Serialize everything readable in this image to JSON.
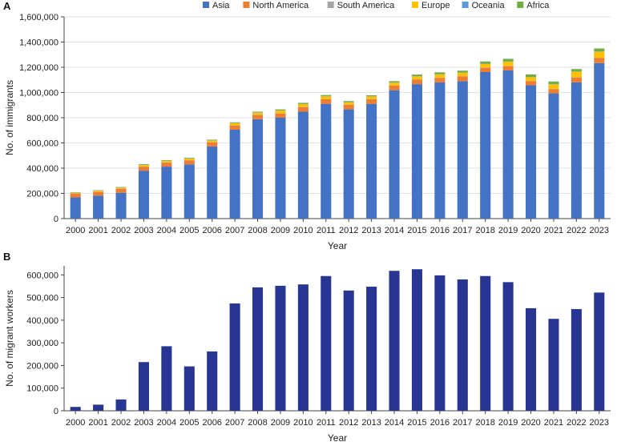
{
  "chart_data": [
    {
      "panel": "A",
      "type": "bar",
      "stacked": true,
      "xlabel": "Year",
      "ylabel": "No. of immigrants",
      "ylim": [
        0,
        1600000
      ],
      "yticks": [
        0,
        200000,
        400000,
        600000,
        800000,
        1000000,
        1200000,
        1400000,
        1600000
      ],
      "ytick_labels": [
        "0",
        "200,000",
        "400,000",
        "600,000",
        "800,000",
        "1,000,000",
        "1,200,000",
        "1,400,000",
        "1,600,000"
      ],
      "grid": "horizontal",
      "legend_position": "top",
      "categories": [
        "2000",
        "2001",
        "2002",
        "2003",
        "2004",
        "2005",
        "2006",
        "2007",
        "2008",
        "2009",
        "2010",
        "2011",
        "2012",
        "2013",
        "2014",
        "2015",
        "2016",
        "2017",
        "2018",
        "2019",
        "2020",
        "2021",
        "2022",
        "2023"
      ],
      "series": [
        {
          "name": "Asia",
          "color": "#4472c4",
          "values": [
            168000,
            182000,
            205000,
            380000,
            412000,
            430000,
            572000,
            705000,
            788000,
            800000,
            848000,
            910000,
            866000,
            910000,
            1018000,
            1066000,
            1080000,
            1090000,
            1162000,
            1175000,
            1057000,
            993000,
            1080000,
            1233000
          ]
        },
        {
          "name": "North America",
          "color": "#ed7d31",
          "values": [
            30000,
            30000,
            30000,
            32000,
            32000,
            32000,
            32000,
            34000,
            34000,
            34000,
            36000,
            36000,
            36000,
            36000,
            36000,
            36000,
            36000,
            37000,
            34000,
            34000,
            34000,
            34000,
            40000,
            40000
          ]
        },
        {
          "name": "South America",
          "color": "#a5a5a5",
          "values": [
            2000,
            2000,
            2000,
            2000,
            2000,
            2000,
            2000,
            2000,
            2000,
            2000,
            2000,
            2000,
            2000,
            2000,
            2000,
            2000,
            2000,
            2000,
            2000,
            2000,
            2000,
            2000,
            2000,
            2000
          ]
        },
        {
          "name": "Europe",
          "color": "#ffc000",
          "values": [
            6000,
            8000,
            8000,
            12000,
            12000,
            12000,
            14000,
            16000,
            16000,
            20000,
            22000,
            22000,
            18000,
            20000,
            22000,
            24000,
            26000,
            28000,
            28000,
            34000,
            28000,
            36000,
            42000,
            48000
          ]
        },
        {
          "name": "Oceania",
          "color": "#5b9bd5",
          "values": [
            2000,
            2000,
            2000,
            2000,
            2000,
            2000,
            2000,
            2000,
            2000,
            2000,
            2000,
            2000,
            2000,
            2000,
            2000,
            2000,
            2000,
            2000,
            2000,
            2000,
            2000,
            2000,
            2000,
            2000
          ]
        },
        {
          "name": "Africa",
          "color": "#70ad47",
          "values": [
            2000,
            2000,
            3000,
            4000,
            4000,
            4000,
            4000,
            5000,
            6000,
            8000,
            8000,
            8000,
            8000,
            8000,
            10000,
            12000,
            14000,
            14000,
            18000,
            20000,
            20000,
            20000,
            20000,
            24000
          ]
        }
      ]
    },
    {
      "panel": "B",
      "type": "bar",
      "xlabel": "Year",
      "ylabel": "No. of migrant workers",
      "ylim": [
        0,
        640000
      ],
      "yticks": [
        0,
        100000,
        200000,
        300000,
        400000,
        500000,
        600000
      ],
      "ytick_labels": [
        "0",
        "100,000",
        "200,000",
        "300,000",
        "400,000",
        "500,000",
        "600,000"
      ],
      "grid": "none",
      "color": "#283593",
      "categories": [
        "2000",
        "2001",
        "2002",
        "2003",
        "2004",
        "2005",
        "2006",
        "2007",
        "2008",
        "2009",
        "2010",
        "2011",
        "2012",
        "2013",
        "2014",
        "2015",
        "2016",
        "2017",
        "2018",
        "2019",
        "2020",
        "2021",
        "2022",
        "2023"
      ],
      "values": [
        17000,
        27000,
        50000,
        215000,
        285000,
        196000,
        262000,
        474000,
        545000,
        552000,
        558000,
        595000,
        531000,
        548000,
        618000,
        625000,
        598000,
        580000,
        595000,
        568000,
        453000,
        406000,
        449000,
        522000
      ]
    }
  ]
}
